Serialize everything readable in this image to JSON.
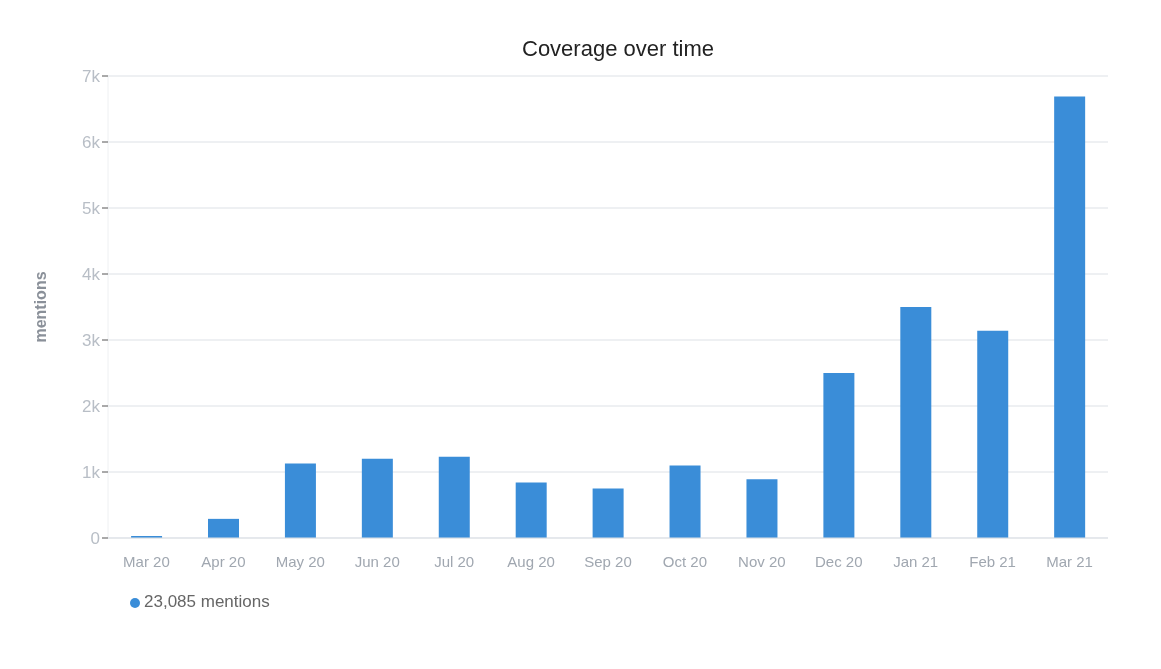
{
  "chart_data": {
    "type": "bar",
    "title": "Coverage over time",
    "ylabel": "mentions",
    "categories": [
      "Mar 20",
      "Apr 20",
      "May 20",
      "Jun 20",
      "Jul 20",
      "Aug 20",
      "Sep 20",
      "Oct 20",
      "Nov 20",
      "Dec 20",
      "Jan 21",
      "Feb 21",
      "Mar 21"
    ],
    "series": [
      {
        "name": "23,085 mentions",
        "color": "#3a8dd8",
        "values": [
          30,
          290,
          1130,
          1200,
          1230,
          840,
          750,
          1100,
          890,
          2500,
          3500,
          3140,
          6690
        ]
      }
    ],
    "ylim": [
      0,
      7000
    ],
    "yticks": [
      {
        "value": 0,
        "label": "0"
      },
      {
        "value": 1000,
        "label": "1k"
      },
      {
        "value": 2000,
        "label": "2k"
      },
      {
        "value": 3000,
        "label": "3k"
      },
      {
        "value": 4000,
        "label": "4k"
      },
      {
        "value": 5000,
        "label": "5k"
      },
      {
        "value": 6000,
        "label": "6k"
      },
      {
        "value": 7000,
        "label": "7k"
      }
    ],
    "grid": "y",
    "legend": "bottom left"
  }
}
